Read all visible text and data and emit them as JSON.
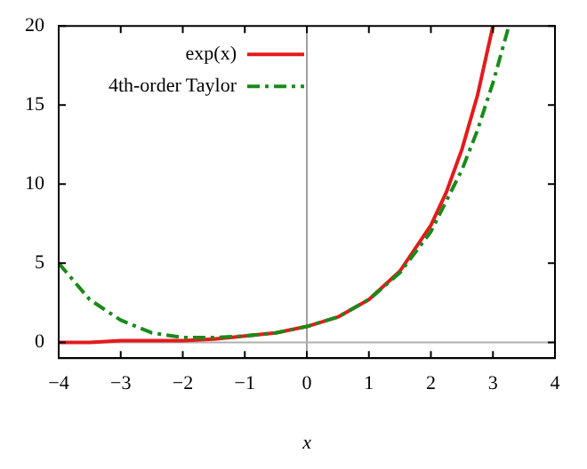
{
  "chart_data": {
    "type": "line",
    "xlabel": "x",
    "xlim": [
      -4,
      4
    ],
    "xticks": [
      -4,
      -3,
      -2,
      -1,
      0,
      1,
      2,
      3,
      4
    ],
    "ylim": [
      -1,
      20
    ],
    "yticks": [
      0,
      5,
      10,
      15,
      20
    ],
    "grid": false,
    "legend": "top left",
    "marker": "none",
    "ref_lines": [
      {
        "axis": "x",
        "value": 0,
        "color": "#a0a0a0"
      },
      {
        "axis": "y",
        "value": 0,
        "color": "#b0b0b0"
      }
    ],
    "series": [
      {
        "name": "exp(x)",
        "color": "#e41a1c",
        "line_style": "solid",
        "x": [
          -4,
          -3.5,
          -3,
          -2.5,
          -2,
          -1.5,
          -1,
          -0.5,
          0,
          0.5,
          1,
          1.5,
          2,
          2.25,
          2.5,
          2.75,
          3
        ],
        "values": [
          0,
          0,
          0.1,
          0.1,
          0.1,
          0.2,
          0.4,
          0.6,
          1,
          1.6,
          2.7,
          4.5,
          7.4,
          9.5,
          12.2,
          15.6,
          20
        ]
      },
      {
        "name": "4th-order Taylor",
        "color": "#1a8a1a",
        "line_style": "dashdot",
        "x": [
          -4,
          -3.5,
          -3,
          -2.5,
          -2,
          -1.5,
          -1,
          -0.5,
          0,
          0.5,
          1,
          1.5,
          2,
          2.5,
          2.75,
          3,
          3.25
        ],
        "values": [
          5,
          2.7,
          1.4,
          0.6,
          0.3,
          0.3,
          0.4,
          0.6,
          1,
          1.6,
          2.7,
          4.4,
          7,
          10.9,
          13.4,
          16.4,
          19.9
        ]
      }
    ]
  }
}
